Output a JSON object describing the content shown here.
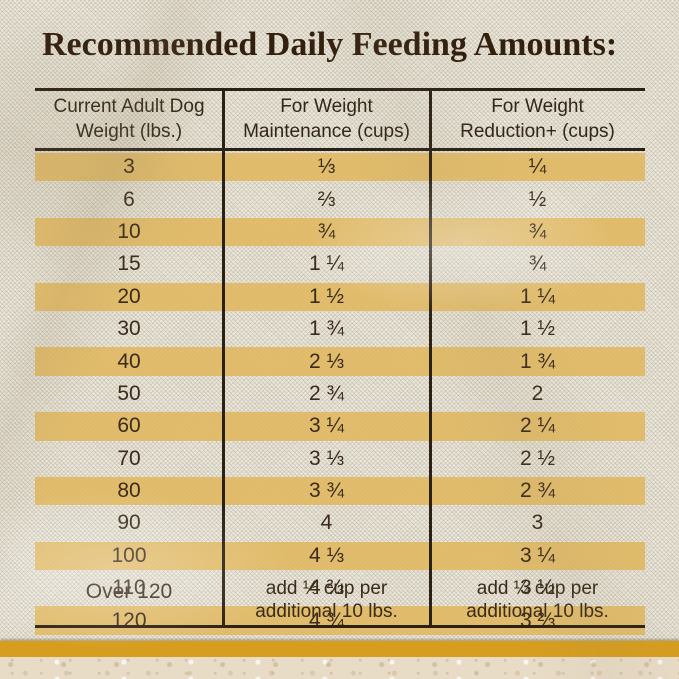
{
  "title": "Recommended Daily Feeding Amounts:",
  "chart_data": {
    "type": "table",
    "title": "Recommended Daily Feeding Amounts:",
    "columns": [
      "Current Adult Dog Weight (lbs.)",
      "For Weight Maintenance (cups)",
      "For Weight Reduction+ (cups)"
    ],
    "rows": [
      [
        "3",
        "⅓",
        "¼"
      ],
      [
        "6",
        "⅔",
        "½"
      ],
      [
        "10",
        "¾",
        "¾"
      ],
      [
        "15",
        "1 ¼",
        "¾"
      ],
      [
        "20",
        "1 ½",
        "1 ¼"
      ],
      [
        "30",
        "1 ¾",
        "1 ½"
      ],
      [
        "40",
        "2 ⅓",
        "1 ¾"
      ],
      [
        "50",
        "2 ¾",
        "2"
      ],
      [
        "60",
        "3 ¼",
        "2 ¼"
      ],
      [
        "70",
        "3 ⅓",
        "2 ½"
      ],
      [
        "80",
        "3 ¾",
        "2 ¾"
      ],
      [
        "90",
        "4",
        "3"
      ],
      [
        "100",
        "4 ⅓",
        "3 ¼"
      ],
      [
        "110",
        "4 ⅔",
        "3 ½"
      ],
      [
        "120",
        "4 ¾",
        "3 ⅔"
      ],
      [
        "Over 120",
        "add ⅓ cup per additional 10 lbs.",
        "add ¼ cup per additional 10 lbs."
      ]
    ],
    "layout": "alternating golden stripe rows starting with first data row; dark rules above header, below header, below last row; two vertical column dividers; no outer side borders"
  },
  "display": {
    "header_lines": [
      "Current Adult Dog\nWeight (lbs.)",
      "For Weight\nMaintenance (cups)",
      "For Weight\nReduction+ (cups)"
    ],
    "footer": {
      "weight": "Over 120",
      "maintenance": "add ⅓ cup per\nadditional 10 lbs.",
      "reduction": "add ¼ cup per\nadditional 10 lbs."
    }
  },
  "colors": {
    "stripe": "#e3bd6d",
    "table_line": "#2b2015",
    "text": "#3a2b1b",
    "title_text": "#331f0e",
    "fabric": "#eae5d7",
    "gold_band": "#d69d1e",
    "stone": "#e9dcc7"
  }
}
